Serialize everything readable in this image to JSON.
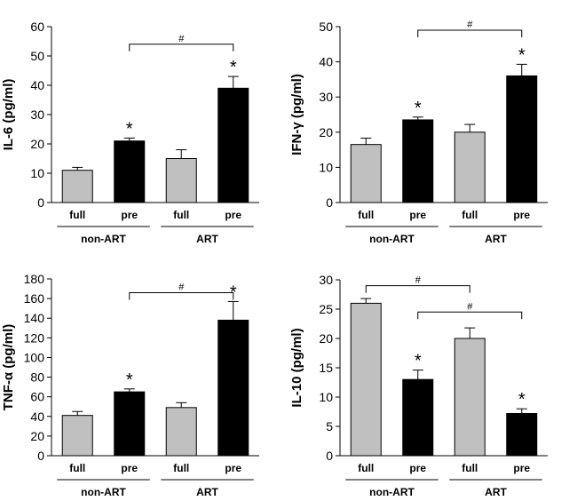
{
  "chart_data": [
    {
      "type": "bar",
      "ylabel": "IL-6 (pg/ml)",
      "ylim": [
        0,
        60
      ],
      "yticks": [
        0,
        10,
        20,
        30,
        40,
        50,
        60
      ],
      "categories": [
        "full",
        "pre",
        "full",
        "pre"
      ],
      "groups": [
        {
          "label": "non-ART",
          "cats": [
            0,
            1
          ]
        },
        {
          "label": "ART",
          "cats": [
            2,
            3
          ]
        }
      ],
      "values": [
        11,
        21,
        15,
        39
      ],
      "errors": [
        1,
        1,
        3,
        4
      ],
      "significance_star": [
        false,
        true,
        false,
        true
      ],
      "brackets": [
        {
          "from": 1,
          "to": 3,
          "label": "#",
          "y": 54
        }
      ],
      "colors": [
        "#c0c0c0",
        "#000000",
        "#c0c0c0",
        "#000000"
      ]
    },
    {
      "type": "bar",
      "ylabel": "IFN-γ (pg/ml)",
      "ylim": [
        0,
        50
      ],
      "yticks": [
        0,
        10,
        20,
        30,
        40,
        50
      ],
      "categories": [
        "full",
        "pre",
        "full",
        "pre"
      ],
      "groups": [
        {
          "label": "non-ART",
          "cats": [
            0,
            1
          ]
        },
        {
          "label": "ART",
          "cats": [
            2,
            3
          ]
        }
      ],
      "values": [
        16.5,
        23.5,
        20,
        36
      ],
      "errors": [
        1.8,
        0.8,
        2.2,
        3.3
      ],
      "significance_star": [
        false,
        true,
        false,
        true
      ],
      "brackets": [
        {
          "from": 1,
          "to": 3,
          "label": "#",
          "y": 49
        }
      ],
      "colors": [
        "#c0c0c0",
        "#000000",
        "#c0c0c0",
        "#000000"
      ]
    },
    {
      "type": "bar",
      "ylabel": "TNF-α (pg/ml)",
      "ylim": [
        0,
        180
      ],
      "yticks": [
        0,
        20,
        40,
        60,
        80,
        100,
        120,
        140,
        160,
        180
      ],
      "categories": [
        "full",
        "pre",
        "full",
        "pre"
      ],
      "groups": [
        {
          "label": "non-ART",
          "cats": [
            0,
            1
          ]
        },
        {
          "label": "ART",
          "cats": [
            2,
            3
          ]
        }
      ],
      "values": [
        41,
        65,
        49,
        138
      ],
      "errors": [
        4,
        3,
        5,
        19
      ],
      "significance_star": [
        false,
        true,
        false,
        true
      ],
      "brackets": [
        {
          "from": 1,
          "to": 3,
          "label": "#",
          "y": 166
        }
      ],
      "colors": [
        "#c0c0c0",
        "#000000",
        "#c0c0c0",
        "#000000"
      ]
    },
    {
      "type": "bar",
      "ylabel": "IL-10 (pg/ml)",
      "ylim": [
        0,
        30
      ],
      "yticks": [
        0,
        5,
        10,
        15,
        20,
        25,
        30
      ],
      "categories": [
        "full",
        "pre",
        "full",
        "pre"
      ],
      "groups": [
        {
          "label": "non-ART",
          "cats": [
            0,
            1
          ]
        },
        {
          "label": "ART",
          "cats": [
            2,
            3
          ]
        }
      ],
      "values": [
        26,
        13,
        20,
        7.2
      ],
      "errors": [
        0.8,
        1.6,
        1.8,
        0.8
      ],
      "significance_star": [
        false,
        true,
        false,
        true
      ],
      "brackets": [
        {
          "from": 0,
          "to": 2,
          "label": "#",
          "y": 29
        },
        {
          "from": 1,
          "to": 3,
          "label": "#",
          "y": 24.5
        }
      ],
      "colors": [
        "#c0c0c0",
        "#000000",
        "#c0c0c0",
        "#000000"
      ]
    }
  ]
}
